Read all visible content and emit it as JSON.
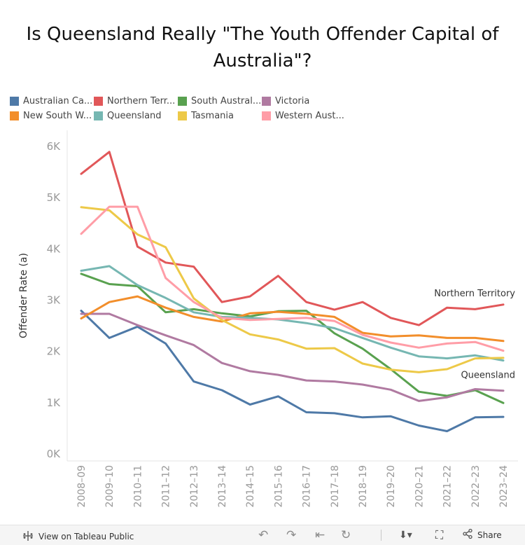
{
  "title": "Is Queensland Really \"The Youth Offender Capital of Australia\"?",
  "legend": [
    {
      "label": "Australian Ca...",
      "color": "#4e79a7"
    },
    {
      "label": "Northern Terr...",
      "color": "#e15759"
    },
    {
      "label": "South Austral...",
      "color": "#59a14f"
    },
    {
      "label": "Victoria",
      "color": "#b07aa1"
    },
    {
      "label": "New South W...",
      "color": "#f28e2b"
    },
    {
      "label": "Queensland",
      "color": "#76b7b2"
    },
    {
      "label": "Tasmania",
      "color": "#edc948"
    },
    {
      "label": "Western Aust...",
      "color": "#ff9da7"
    }
  ],
  "annotations": {
    "northern_territory": "Northern Territory",
    "queensland": "Queensland"
  },
  "toolbar": {
    "view_label": "View on Tableau Public",
    "share_label": "Share"
  },
  "chart_data": {
    "type": "line",
    "title": "Is Queensland Really \"The Youth Offender Capital of Australia\"?",
    "ylabel": "Offender Rate (a)",
    "xlabel": "",
    "ylim": [
      0,
      6000
    ],
    "yticks": [
      0,
      1000,
      2000,
      3000,
      4000,
      5000,
      6000
    ],
    "ytick_labels": [
      "0K",
      "1K",
      "2K",
      "3K",
      "4K",
      "5K",
      "6K"
    ],
    "grid": false,
    "legend_position": "top-left",
    "categories": [
      "2008–09",
      "2009–10",
      "2010–11",
      "2011–12",
      "2012–13",
      "2013–14",
      "2014–15",
      "2015–16",
      "2016–17",
      "2017–18",
      "2018–19",
      "2019–20",
      "2020–21",
      "2021–22",
      "2022–23",
      "2023–24"
    ],
    "series": [
      {
        "name": "Australian Capital Territory",
        "color": "#4e79a7",
        "values": [
          2780,
          2250,
          2470,
          2140,
          1400,
          1230,
          950,
          1110,
          800,
          780,
          700,
          720,
          540,
          430,
          700,
          710
        ]
      },
      {
        "name": "Northern Territory",
        "color": "#e15759",
        "values": [
          5450,
          5880,
          4030,
          3720,
          3640,
          2950,
          3060,
          3460,
          2950,
          2800,
          2950,
          2640,
          2500,
          2840,
          2810,
          2900
        ]
      },
      {
        "name": "South Australia",
        "color": "#59a14f",
        "values": [
          3500,
          3300,
          3260,
          2750,
          2810,
          2730,
          2670,
          2770,
          2780,
          2340,
          2040,
          1640,
          1200,
          1120,
          1230,
          980
        ]
      },
      {
        "name": "Victoria",
        "color": "#b07aa1",
        "values": [
          2720,
          2720,
          2500,
          2300,
          2110,
          1760,
          1600,
          1530,
          1420,
          1400,
          1340,
          1240,
          1020,
          1090,
          1250,
          1220
        ]
      },
      {
        "name": "New South Wales",
        "color": "#f28e2b",
        "values": [
          2630,
          2950,
          3060,
          2840,
          2660,
          2570,
          2730,
          2760,
          2720,
          2660,
          2350,
          2280,
          2300,
          2250,
          2250,
          2190
        ]
      },
      {
        "name": "Queensland",
        "color": "#76b7b2",
        "values": [
          3560,
          3650,
          3280,
          3030,
          2750,
          2660,
          2640,
          2610,
          2540,
          2440,
          2250,
          2060,
          1890,
          1850,
          1910,
          1810
        ]
      },
      {
        "name": "Tasmania",
        "color": "#edc948",
        "values": [
          4800,
          4740,
          4270,
          4020,
          3020,
          2600,
          2320,
          2220,
          2040,
          2050,
          1750,
          1630,
          1580,
          1640,
          1850,
          1860
        ]
      },
      {
        "name": "Western Australia",
        "color": "#ff9da7",
        "values": [
          4280,
          4810,
          4810,
          3420,
          2950,
          2640,
          2600,
          2620,
          2640,
          2580,
          2310,
          2160,
          2060,
          2140,
          2170,
          2000
        ]
      }
    ]
  }
}
